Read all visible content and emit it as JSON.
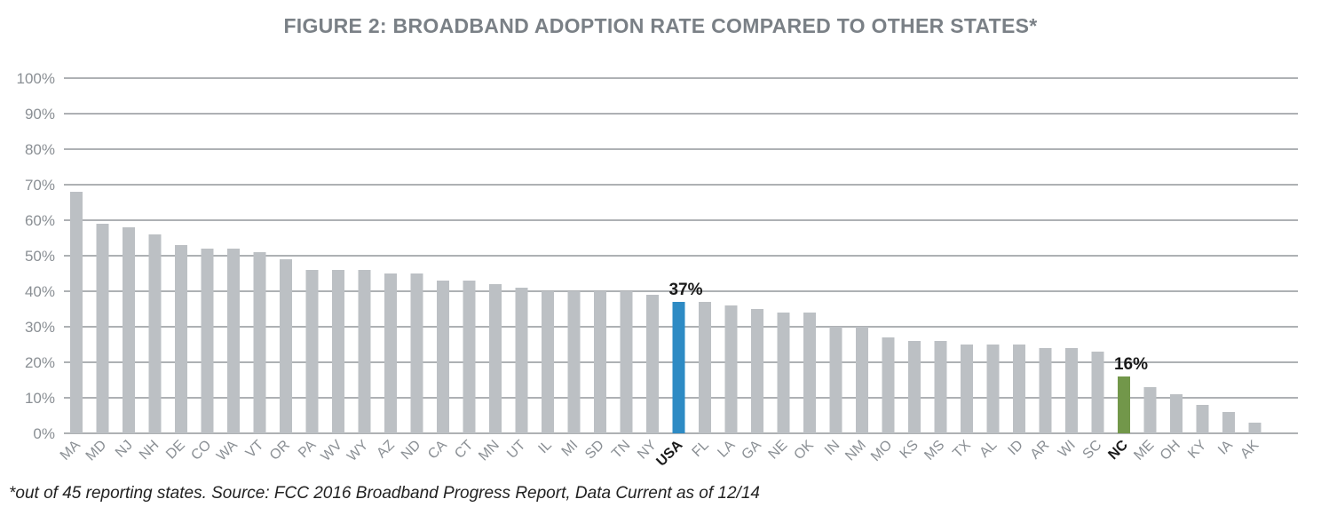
{
  "chart_data": {
    "type": "bar",
    "title": "FIGURE 2: BROADBAND ADOPTION RATE COMPARED TO OTHER STATES*",
    "footnote": "*out of 45 reporting states. Source: FCC 2016 Broadband Progress Report, Data Current as of 12/14",
    "xlabel": "",
    "ylabel": "",
    "ylim": [
      0,
      100
    ],
    "y_ticks": [
      "0%",
      "10%",
      "20%",
      "30%",
      "40%",
      "50%",
      "60%",
      "70%",
      "80%",
      "90%",
      "100%"
    ],
    "grid": true,
    "categories": [
      "MA",
      "MD",
      "NJ",
      "NH",
      "DE",
      "CO",
      "WA",
      "VT",
      "OR",
      "PA",
      "WV",
      "WY",
      "AZ",
      "ND",
      "CA",
      "CT",
      "MN",
      "UT",
      "IL",
      "MI",
      "SD",
      "TN",
      "NY",
      "USA",
      "FL",
      "LA",
      "GA",
      "NE",
      "OK",
      "IN",
      "NM",
      "MO",
      "KS",
      "MS",
      "TX",
      "AL",
      "ID",
      "AR",
      "WI",
      "SC",
      "NC",
      "ME",
      "OH",
      "KY",
      "IA",
      "AK"
    ],
    "values": [
      68,
      59,
      58,
      56,
      53,
      52,
      52,
      51,
      49,
      46,
      46,
      46,
      45,
      45,
      43,
      43,
      42,
      41,
      40,
      40,
      40,
      40,
      39,
      37,
      37,
      36,
      35,
      34,
      34,
      30,
      30,
      27,
      26,
      26,
      25,
      25,
      25,
      24,
      24,
      23,
      16,
      13,
      11,
      8,
      6,
      3
    ],
    "colors": {
      "default": "#bcc0c4",
      "highlight_usa": "#2e8bc4",
      "highlight_nc": "#72974a",
      "grid": "#7d8286"
    },
    "highlights": [
      {
        "category": "USA",
        "label": "37%",
        "color": "#2e8bc4"
      },
      {
        "category": "NC",
        "label": "16%",
        "color": "#72974a"
      }
    ]
  }
}
